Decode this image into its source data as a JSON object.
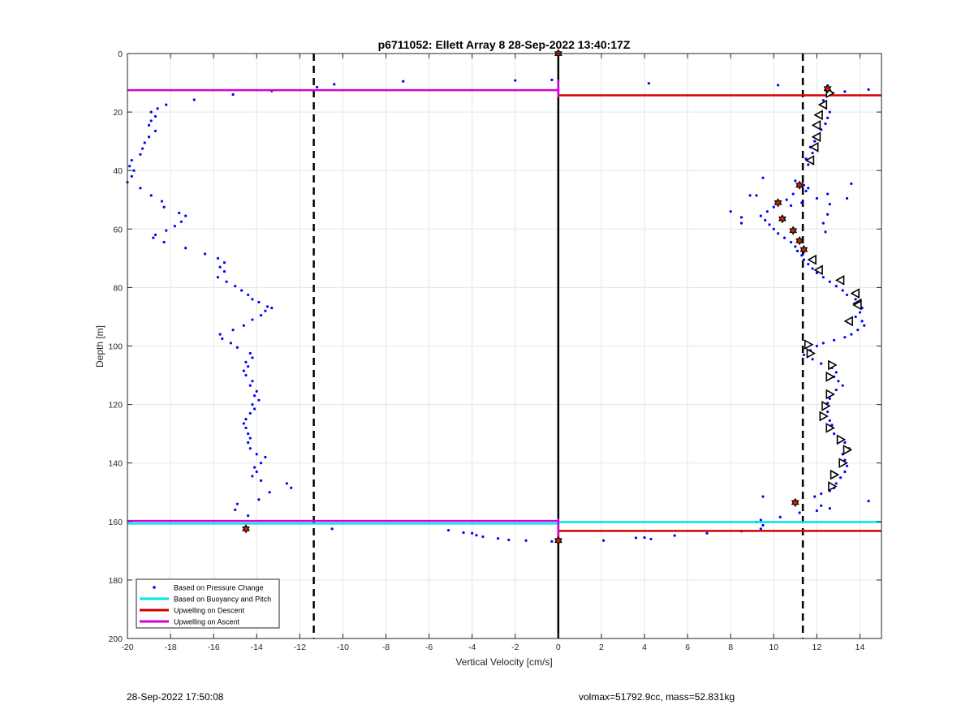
{
  "chart_data": {
    "type": "scatter",
    "title": "p6711052: Ellett Array 8 28-Sep-2022 13:40:17Z",
    "xlabel": "Vertical Velocity [cm/s]",
    "ylabel": "Depth [m]",
    "xlim": [
      -20,
      15
    ],
    "ylim": [
      0,
      200
    ],
    "y_reversed": true,
    "grid": true,
    "x_ticks": [
      -20,
      -18,
      -16,
      -14,
      -12,
      -10,
      -8,
      -6,
      -4,
      -2,
      0,
      2,
      4,
      6,
      8,
      10,
      12,
      14
    ],
    "y_ticks": [
      0,
      20,
      40,
      60,
      80,
      100,
      120,
      140,
      160,
      180,
      200
    ],
    "legend_location": "bottom-left",
    "legend": [
      {
        "label": "Based on Pressure Change",
        "color": "#0000ff",
        "style": "dot"
      },
      {
        "label": "Based on Buoyancy and Pitch",
        "color": "#00e5ee",
        "style": "line"
      },
      {
        "label": "Upwelling on Descent",
        "color": "#d40000",
        "style": "line"
      },
      {
        "label": "Upwelling on Ascent",
        "color": "#d400d4",
        "style": "line"
      }
    ],
    "vertical_lines": [
      {
        "x": 0,
        "style": "solid",
        "color": "#000000"
      },
      {
        "x": -11.35,
        "style": "dashed",
        "color": "#000000"
      },
      {
        "x": 11.35,
        "style": "dashed",
        "color": "#000000"
      }
    ],
    "series": [
      {
        "name": "Based on Pressure Change",
        "color": "#0000ff",
        "points": [
          [
            -11.2,
            11.5
          ],
          [
            -10.4,
            10.5
          ],
          [
            -7.2,
            9.5
          ],
          [
            -2.0,
            9.2
          ],
          [
            -0.3,
            9.0
          ],
          [
            4.2,
            10.2
          ],
          [
            10.2,
            10.8
          ],
          [
            12.5,
            11.0
          ],
          [
            14.4,
            12.3
          ],
          [
            13.3,
            13.0
          ],
          [
            -13.3,
            12.8
          ],
          [
            -15.1,
            14.0
          ],
          [
            -16.9,
            15.8
          ],
          [
            -18.2,
            17.5
          ],
          [
            -18.6,
            18.8
          ],
          [
            -18.9,
            20.0
          ],
          [
            -18.7,
            21.5
          ],
          [
            -18.9,
            23.0
          ],
          [
            -19.0,
            24.5
          ],
          [
            -18.7,
            26.5
          ],
          [
            -19.0,
            28.5
          ],
          [
            -19.2,
            30.5
          ],
          [
            -19.3,
            32.5
          ],
          [
            -19.4,
            34.5
          ],
          [
            -19.8,
            36.5
          ],
          [
            -19.9,
            38.5
          ],
          [
            -19.7,
            40.0
          ],
          [
            -19.8,
            42.0
          ],
          [
            -20.0,
            44.0
          ],
          [
            -19.4,
            46.0
          ],
          [
            -18.9,
            48.5
          ],
          [
            -18.4,
            50.5
          ],
          [
            -18.3,
            52.5
          ],
          [
            -17.6,
            54.5
          ],
          [
            -17.3,
            55.5
          ],
          [
            -17.5,
            57.5
          ],
          [
            -17.8,
            59.0
          ],
          [
            -18.2,
            60.5
          ],
          [
            -18.7,
            62.0
          ],
          [
            -18.8,
            63.0
          ],
          [
            -18.3,
            64.5
          ],
          [
            -17.3,
            66.5
          ],
          [
            -16.4,
            68.5
          ],
          [
            -15.8,
            70.0
          ],
          [
            -15.5,
            71.5
          ],
          [
            -15.7,
            73.0
          ],
          [
            -15.5,
            74.5
          ],
          [
            -15.8,
            76.5
          ],
          [
            -15.4,
            78.0
          ],
          [
            -15.0,
            79.5
          ],
          [
            -14.7,
            81.0
          ],
          [
            -14.4,
            82.5
          ],
          [
            -14.2,
            84.0
          ],
          [
            -13.9,
            85.0
          ],
          [
            -13.5,
            86.5
          ],
          [
            -13.3,
            87.0
          ],
          [
            -13.6,
            88.0
          ],
          [
            -13.8,
            89.5
          ],
          [
            -14.2,
            91.0
          ],
          [
            -14.6,
            93.0
          ],
          [
            -15.1,
            94.5
          ],
          [
            -15.7,
            96.0
          ],
          [
            -15.6,
            97.5
          ],
          [
            -15.2,
            99.0
          ],
          [
            -14.9,
            100.5
          ],
          [
            -14.3,
            102.5
          ],
          [
            -14.2,
            104.0
          ],
          [
            -14.5,
            105.5
          ],
          [
            -14.4,
            107.0
          ],
          [
            -14.6,
            108.5
          ],
          [
            -14.5,
            110.0
          ],
          [
            -14.2,
            112.0
          ],
          [
            -14.3,
            113.5
          ],
          [
            -14.0,
            115.5
          ],
          [
            -14.1,
            117.0
          ],
          [
            -13.9,
            118.5
          ],
          [
            -14.2,
            120.0
          ],
          [
            -14.1,
            121.5
          ],
          [
            -14.3,
            123.0
          ],
          [
            -14.5,
            125.0
          ],
          [
            -14.6,
            126.5
          ],
          [
            -14.5,
            128.0
          ],
          [
            -14.4,
            130.0
          ],
          [
            -14.3,
            131.5
          ],
          [
            -14.4,
            133.0
          ],
          [
            -14.3,
            135.0
          ],
          [
            -14.0,
            137.0
          ],
          [
            -13.6,
            138.0
          ],
          [
            -13.8,
            140.0
          ],
          [
            -14.1,
            141.5
          ],
          [
            -14.0,
            143.0
          ],
          [
            -14.2,
            144.5
          ],
          [
            -13.8,
            146.0
          ],
          [
            -12.6,
            147.0
          ],
          [
            -12.4,
            148.5
          ],
          [
            -13.4,
            150.0
          ],
          [
            -13.9,
            152.5
          ],
          [
            -14.9,
            154.0
          ],
          [
            -15.0,
            156.0
          ],
          [
            -14.4,
            158.0
          ],
          [
            -14.5,
            162.0
          ],
          [
            -10.5,
            162.5
          ],
          [
            -5.1,
            163.0
          ],
          [
            -4.4,
            163.8
          ],
          [
            -4.0,
            164.0
          ],
          [
            -3.8,
            164.7
          ],
          [
            -3.5,
            165.2
          ],
          [
            -2.8,
            165.8
          ],
          [
            -2.3,
            166.3
          ],
          [
            -1.5,
            166.5
          ],
          [
            -0.3,
            166.8
          ],
          [
            2.1,
            166.5
          ],
          [
            3.6,
            165.6
          ],
          [
            4.0,
            165.5
          ],
          [
            4.3,
            166.0
          ],
          [
            5.4,
            164.8
          ],
          [
            6.9,
            164.0
          ],
          [
            8.5,
            163.3
          ],
          [
            9.4,
            162.5
          ],
          [
            9.5,
            161.3
          ],
          [
            9.2,
            160.2
          ],
          [
            9.4,
            159.5
          ],
          [
            10.3,
            158.5
          ],
          [
            11.2,
            157.0
          ],
          [
            12.0,
            156.3
          ],
          [
            12.6,
            155.5
          ],
          [
            12.2,
            154.6
          ],
          [
            9.5,
            151.5
          ],
          [
            11.9,
            151.5
          ],
          [
            12.2,
            150.5
          ],
          [
            12.6,
            149.5
          ],
          [
            12.8,
            148.5
          ],
          [
            12.9,
            147.0
          ],
          [
            13.1,
            145.0
          ],
          [
            14.4,
            153.0
          ],
          [
            13.3,
            143.0
          ],
          [
            13.4,
            141.0
          ],
          [
            13.3,
            139.0
          ],
          [
            13.2,
            137.0
          ],
          [
            13.5,
            135.0
          ],
          [
            13.3,
            133.0
          ],
          [
            13.0,
            131.5
          ],
          [
            12.8,
            130.0
          ],
          [
            12.5,
            128.5
          ],
          [
            12.7,
            127.0
          ],
          [
            12.6,
            125.5
          ],
          [
            12.4,
            124.0
          ],
          [
            12.5,
            122.5
          ],
          [
            12.4,
            121.0
          ],
          [
            12.5,
            119.5
          ],
          [
            12.6,
            118.0
          ],
          [
            12.7,
            116.5
          ],
          [
            12.9,
            115.0
          ],
          [
            13.2,
            113.5
          ],
          [
            13.0,
            112.0
          ],
          [
            12.8,
            110.5
          ],
          [
            12.9,
            109.0
          ],
          [
            12.7,
            107.5
          ],
          [
            12.2,
            106.0
          ],
          [
            11.8,
            104.5
          ],
          [
            11.4,
            103.0
          ],
          [
            11.7,
            101.5
          ],
          [
            12.0,
            100.0
          ],
          [
            12.3,
            99.0
          ],
          [
            12.8,
            98.0
          ],
          [
            13.3,
            97.0
          ],
          [
            13.6,
            96.0
          ],
          [
            13.9,
            94.5
          ],
          [
            14.2,
            93.0
          ],
          [
            14.1,
            91.5
          ],
          [
            13.8,
            90.0
          ],
          [
            14.0,
            88.5
          ],
          [
            14.1,
            87.0
          ],
          [
            13.9,
            85.5
          ],
          [
            13.8,
            84.0
          ],
          [
            13.4,
            82.5
          ],
          [
            13.2,
            81.0
          ],
          [
            12.9,
            79.5
          ],
          [
            12.6,
            78.0
          ],
          [
            12.3,
            76.5
          ],
          [
            12.0,
            75.0
          ],
          [
            11.8,
            73.5
          ],
          [
            11.6,
            72.0
          ],
          [
            11.4,
            70.5
          ],
          [
            11.3,
            69.0
          ],
          [
            11.1,
            67.5
          ],
          [
            11.0,
            66.0
          ],
          [
            10.8,
            64.5
          ],
          [
            10.5,
            63.0
          ],
          [
            10.2,
            61.5
          ],
          [
            10.0,
            60.0
          ],
          [
            9.8,
            58.5
          ],
          [
            9.6,
            57.0
          ],
          [
            9.4,
            55.5
          ],
          [
            9.7,
            54.0
          ],
          [
            10.0,
            52.5
          ],
          [
            9.2,
            48.5
          ],
          [
            8.9,
            48.5
          ],
          [
            8.0,
            54.0
          ],
          [
            8.5,
            56.0
          ],
          [
            8.5,
            58.0
          ],
          [
            9.5,
            42.5
          ],
          [
            11.0,
            43.5
          ],
          [
            11.4,
            45.0
          ],
          [
            11.6,
            46.0
          ],
          [
            11.5,
            47.0
          ],
          [
            10.9,
            48.0
          ],
          [
            10.6,
            50.0
          ],
          [
            10.8,
            52.0
          ],
          [
            11.3,
            51.0
          ],
          [
            12.0,
            49.5
          ],
          [
            12.5,
            48.0
          ],
          [
            13.6,
            44.5
          ],
          [
            13.4,
            49.5
          ],
          [
            12.6,
            51.5
          ],
          [
            12.5,
            55.0
          ],
          [
            12.3,
            58.0
          ],
          [
            12.4,
            61.0
          ],
          [
            11.6,
            38.0
          ],
          [
            11.5,
            36.0
          ],
          [
            11.8,
            34.0
          ],
          [
            11.7,
            32.0
          ],
          [
            11.9,
            30.0
          ],
          [
            12.1,
            28.0
          ],
          [
            12.2,
            26.0
          ],
          [
            12.4,
            24.0
          ],
          [
            12.5,
            22.0
          ],
          [
            12.6,
            20.0
          ],
          [
            12.4,
            18.0
          ],
          [
            12.3,
            16.0
          ],
          [
            12.6,
            14.0
          ],
          [
            12.4,
            12.5
          ],
          [
            12.7,
            13.5
          ]
        ]
      },
      {
        "name": "Based on Buoyancy and Pitch",
        "color": "#00e5ee",
        "segments": [
          {
            "x": [
              -20,
              0
            ],
            "y": 160.7
          },
          {
            "x": [
              0,
              15
            ],
            "y": 160.2
          }
        ]
      },
      {
        "name": "Upwelling on Descent",
        "color": "#d40000",
        "segments": [
          {
            "x": [
              0,
              15
            ],
            "y": 14.3
          },
          {
            "x": [
              0,
              15
            ],
            "y": 163.2
          }
        ]
      },
      {
        "name": "Upwelling on Ascent",
        "color": "#d400d4",
        "segments": [
          {
            "x": [
              -20,
              0
            ],
            "y": 12.5
          },
          {
            "x": [
              -20,
              0
            ],
            "y": 159.8
          },
          {
            "x": [
              0,
              0
            ],
            "y": [
              9,
              15
            ]
          },
          {
            "x": [
              0,
              0
            ],
            "y": [
              159,
              167
            ]
          }
        ]
      }
    ],
    "marker_points": [
      {
        "shape": "triangle-left",
        "points": [
          [
            12.3,
            17.5
          ],
          [
            12.1,
            21.0
          ],
          [
            12.0,
            24.5
          ],
          [
            12.0,
            28.5
          ],
          [
            11.9,
            32.0
          ],
          [
            11.7,
            36.5
          ],
          [
            11.8,
            70.5
          ],
          [
            12.1,
            74.0
          ],
          [
            13.1,
            77.5
          ],
          [
            13.8,
            82.0
          ],
          [
            13.9,
            85.5
          ],
          [
            13.5,
            91.5
          ],
          [
            13.9,
            86.0
          ]
        ]
      },
      {
        "shape": "triangle-right",
        "points": [
          [
            12.6,
            13.5
          ],
          [
            11.6,
            99.5
          ],
          [
            11.7,
            102.5
          ],
          [
            12.7,
            106.5
          ],
          [
            12.6,
            110.5
          ],
          [
            12.6,
            116.5
          ],
          [
            12.4,
            120.5
          ],
          [
            12.3,
            124.0
          ],
          [
            12.6,
            128.0
          ],
          [
            13.1,
            132.0
          ],
          [
            13.4,
            135.5
          ],
          [
            13.2,
            140.0
          ],
          [
            12.8,
            144.0
          ],
          [
            12.7,
            148.0
          ]
        ]
      },
      {
        "shape": "hexagram-red",
        "points": [
          [
            0,
            0
          ],
          [
            12.5,
            12.0
          ],
          [
            11.2,
            45.0
          ],
          [
            10.2,
            51.0
          ],
          [
            10.4,
            56.5
          ],
          [
            10.9,
            60.5
          ],
          [
            11.2,
            64.0
          ],
          [
            11.4,
            67.0
          ],
          [
            11.0,
            153.5
          ],
          [
            -14.5,
            162.5
          ],
          [
            0,
            166.5
          ]
        ]
      }
    ]
  },
  "footer": {
    "left": "28-Sep-2022 17:50:08",
    "right": "volmax=51792.9cc, mass=52.831kg"
  }
}
